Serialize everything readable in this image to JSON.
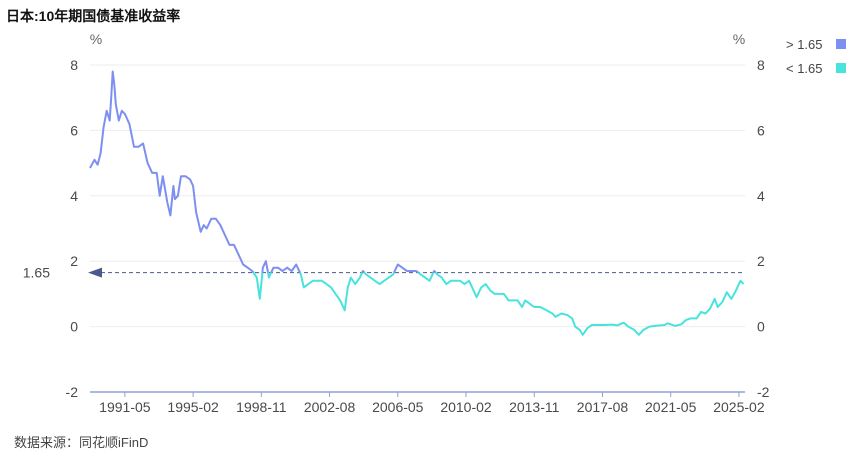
{
  "title": "日本:10年期国债基准收益率",
  "source": "数据来源：同花顺iFinD",
  "colors": {
    "above": "#7d8ff0",
    "below": "#49e3dd",
    "reference": "#4a5a8c",
    "axis": "#8da0d8",
    "grid": "#eeeeee"
  },
  "chart_data": {
    "type": "line",
    "title": "日本:10年期国债基准收益率",
    "yunit_left": "%",
    "yunit_right": "%",
    "ylim": [
      -2,
      8
    ],
    "yticks": [
      -2,
      0,
      2,
      4,
      6,
      8
    ],
    "xlim": [
      "1989-06",
      "2025-06"
    ],
    "xticks": [
      "1991-05",
      "1995-02",
      "1998-11",
      "2002-08",
      "2006-05",
      "2010-02",
      "2013-11",
      "2017-08",
      "2021-05",
      "2025-02"
    ],
    "reference_line": {
      "value": 1.65,
      "label": "1.65"
    },
    "legend": [
      {
        "name": "> 1.65",
        "color": "#7d8ff0"
      },
      {
        "name": "< 1.65",
        "color": "#49e3dd"
      }
    ],
    "legend_position": "top-right",
    "grid": true,
    "series": [
      {
        "name": "日本:10年期国债基准收益率",
        "points": [
          [
            "1989-06",
            4.85
          ],
          [
            "1989-09",
            5.1
          ],
          [
            "1989-11",
            4.95
          ],
          [
            "1990-01",
            5.3
          ],
          [
            "1990-03",
            6.1
          ],
          [
            "1990-05",
            6.6
          ],
          [
            "1990-07",
            6.3
          ],
          [
            "1990-08",
            7.0
          ],
          [
            "1990-09",
            7.8
          ],
          [
            "1990-10",
            7.4
          ],
          [
            "1990-11",
            6.8
          ],
          [
            "1991-01",
            6.3
          ],
          [
            "1991-03",
            6.6
          ],
          [
            "1991-05",
            6.5
          ],
          [
            "1991-08",
            6.2
          ],
          [
            "1991-11",
            5.5
          ],
          [
            "1992-02",
            5.5
          ],
          [
            "1992-05",
            5.6
          ],
          [
            "1992-08",
            5.0
          ],
          [
            "1992-11",
            4.7
          ],
          [
            "1993-02",
            4.7
          ],
          [
            "1993-04",
            4.0
          ],
          [
            "1993-06",
            4.6
          ],
          [
            "1993-09",
            3.8
          ],
          [
            "1993-11",
            3.4
          ],
          [
            "1994-01",
            4.3
          ],
          [
            "1994-02",
            3.9
          ],
          [
            "1994-04",
            4.0
          ],
          [
            "1994-06",
            4.6
          ],
          [
            "1994-09",
            4.6
          ],
          [
            "1994-12",
            4.5
          ],
          [
            "1995-02",
            4.3
          ],
          [
            "1995-04",
            3.5
          ],
          [
            "1995-07",
            2.9
          ],
          [
            "1995-09",
            3.1
          ],
          [
            "1995-11",
            3.0
          ],
          [
            "1996-02",
            3.3
          ],
          [
            "1996-05",
            3.3
          ],
          [
            "1996-08",
            3.1
          ],
          [
            "1996-11",
            2.8
          ],
          [
            "1997-02",
            2.5
          ],
          [
            "1997-05",
            2.5
          ],
          [
            "1997-08",
            2.2
          ],
          [
            "1997-11",
            1.9
          ],
          [
            "1998-02",
            1.8
          ],
          [
            "1998-05",
            1.7
          ],
          [
            "1998-08",
            1.5
          ],
          [
            "1998-10",
            0.85
          ],
          [
            "1998-12",
            1.8
          ],
          [
            "1999-02",
            2.0
          ],
          [
            "1999-04",
            1.5
          ],
          [
            "1999-07",
            1.8
          ],
          [
            "1999-10",
            1.8
          ],
          [
            "2000-01",
            1.7
          ],
          [
            "2000-04",
            1.8
          ],
          [
            "2000-07",
            1.7
          ],
          [
            "2000-10",
            1.9
          ],
          [
            "2001-01",
            1.6
          ],
          [
            "2001-03",
            1.2
          ],
          [
            "2001-06",
            1.3
          ],
          [
            "2001-09",
            1.4
          ],
          [
            "2001-12",
            1.4
          ],
          [
            "2002-03",
            1.4
          ],
          [
            "2002-06",
            1.3
          ],
          [
            "2002-09",
            1.2
          ],
          [
            "2002-12",
            1.0
          ],
          [
            "2003-03",
            0.8
          ],
          [
            "2003-06",
            0.5
          ],
          [
            "2003-08",
            1.2
          ],
          [
            "2003-10",
            1.5
          ],
          [
            "2004-01",
            1.3
          ],
          [
            "2004-04",
            1.5
          ],
          [
            "2004-06",
            1.7
          ],
          [
            "2004-08",
            1.6
          ],
          [
            "2004-11",
            1.5
          ],
          [
            "2005-02",
            1.4
          ],
          [
            "2005-05",
            1.3
          ],
          [
            "2005-08",
            1.4
          ],
          [
            "2005-11",
            1.5
          ],
          [
            "2006-02",
            1.6
          ],
          [
            "2006-05",
            1.9
          ],
          [
            "2006-08",
            1.8
          ],
          [
            "2006-11",
            1.7
          ],
          [
            "2007-02",
            1.7
          ],
          [
            "2007-05",
            1.7
          ],
          [
            "2007-08",
            1.6
          ],
          [
            "2007-11",
            1.5
          ],
          [
            "2008-02",
            1.4
          ],
          [
            "2008-05",
            1.7
          ],
          [
            "2008-07",
            1.6
          ],
          [
            "2008-10",
            1.5
          ],
          [
            "2009-01",
            1.3
          ],
          [
            "2009-04",
            1.4
          ],
          [
            "2009-07",
            1.4
          ],
          [
            "2009-10",
            1.4
          ],
          [
            "2010-01",
            1.3
          ],
          [
            "2010-04",
            1.4
          ],
          [
            "2010-07",
            1.1
          ],
          [
            "2010-09",
            0.9
          ],
          [
            "2010-12",
            1.2
          ],
          [
            "2011-03",
            1.3
          ],
          [
            "2011-06",
            1.1
          ],
          [
            "2011-09",
            1.0
          ],
          [
            "2011-12",
            1.0
          ],
          [
            "2012-03",
            1.0
          ],
          [
            "2012-06",
            0.8
          ],
          [
            "2012-09",
            0.8
          ],
          [
            "2012-12",
            0.8
          ],
          [
            "2013-03",
            0.6
          ],
          [
            "2013-05",
            0.8
          ],
          [
            "2013-08",
            0.7
          ],
          [
            "2013-11",
            0.6
          ],
          [
            "2014-03",
            0.6
          ],
          [
            "2014-07",
            0.5
          ],
          [
            "2014-11",
            0.4
          ],
          [
            "2015-01",
            0.3
          ],
          [
            "2015-05",
            0.4
          ],
          [
            "2015-09",
            0.35
          ],
          [
            "2015-12",
            0.25
          ],
          [
            "2016-02",
            0.0
          ],
          [
            "2016-05",
            -0.1
          ],
          [
            "2016-07",
            -0.25
          ],
          [
            "2016-10",
            -0.05
          ],
          [
            "2017-01",
            0.05
          ],
          [
            "2017-06",
            0.05
          ],
          [
            "2017-10",
            0.05
          ],
          [
            "2018-02",
            0.06
          ],
          [
            "2018-06",
            0.04
          ],
          [
            "2018-10",
            0.12
          ],
          [
            "2019-01",
            0.0
          ],
          [
            "2019-05",
            -0.1
          ],
          [
            "2019-08",
            -0.25
          ],
          [
            "2019-11",
            -0.1
          ],
          [
            "2020-03",
            0.0
          ],
          [
            "2020-08",
            0.03
          ],
          [
            "2021-01",
            0.05
          ],
          [
            "2021-03",
            0.1
          ],
          [
            "2021-08",
            0.02
          ],
          [
            "2021-12",
            0.07
          ],
          [
            "2022-03",
            0.2
          ],
          [
            "2022-06",
            0.25
          ],
          [
            "2022-10",
            0.25
          ],
          [
            "2023-01",
            0.45
          ],
          [
            "2023-04",
            0.4
          ],
          [
            "2023-07",
            0.55
          ],
          [
            "2023-10",
            0.85
          ],
          [
            "2023-12",
            0.6
          ],
          [
            "2024-03",
            0.75
          ],
          [
            "2024-06",
            1.05
          ],
          [
            "2024-09",
            0.85
          ],
          [
            "2024-12",
            1.1
          ],
          [
            "2025-03",
            1.4
          ],
          [
            "2025-05",
            1.3
          ]
        ]
      }
    ]
  }
}
